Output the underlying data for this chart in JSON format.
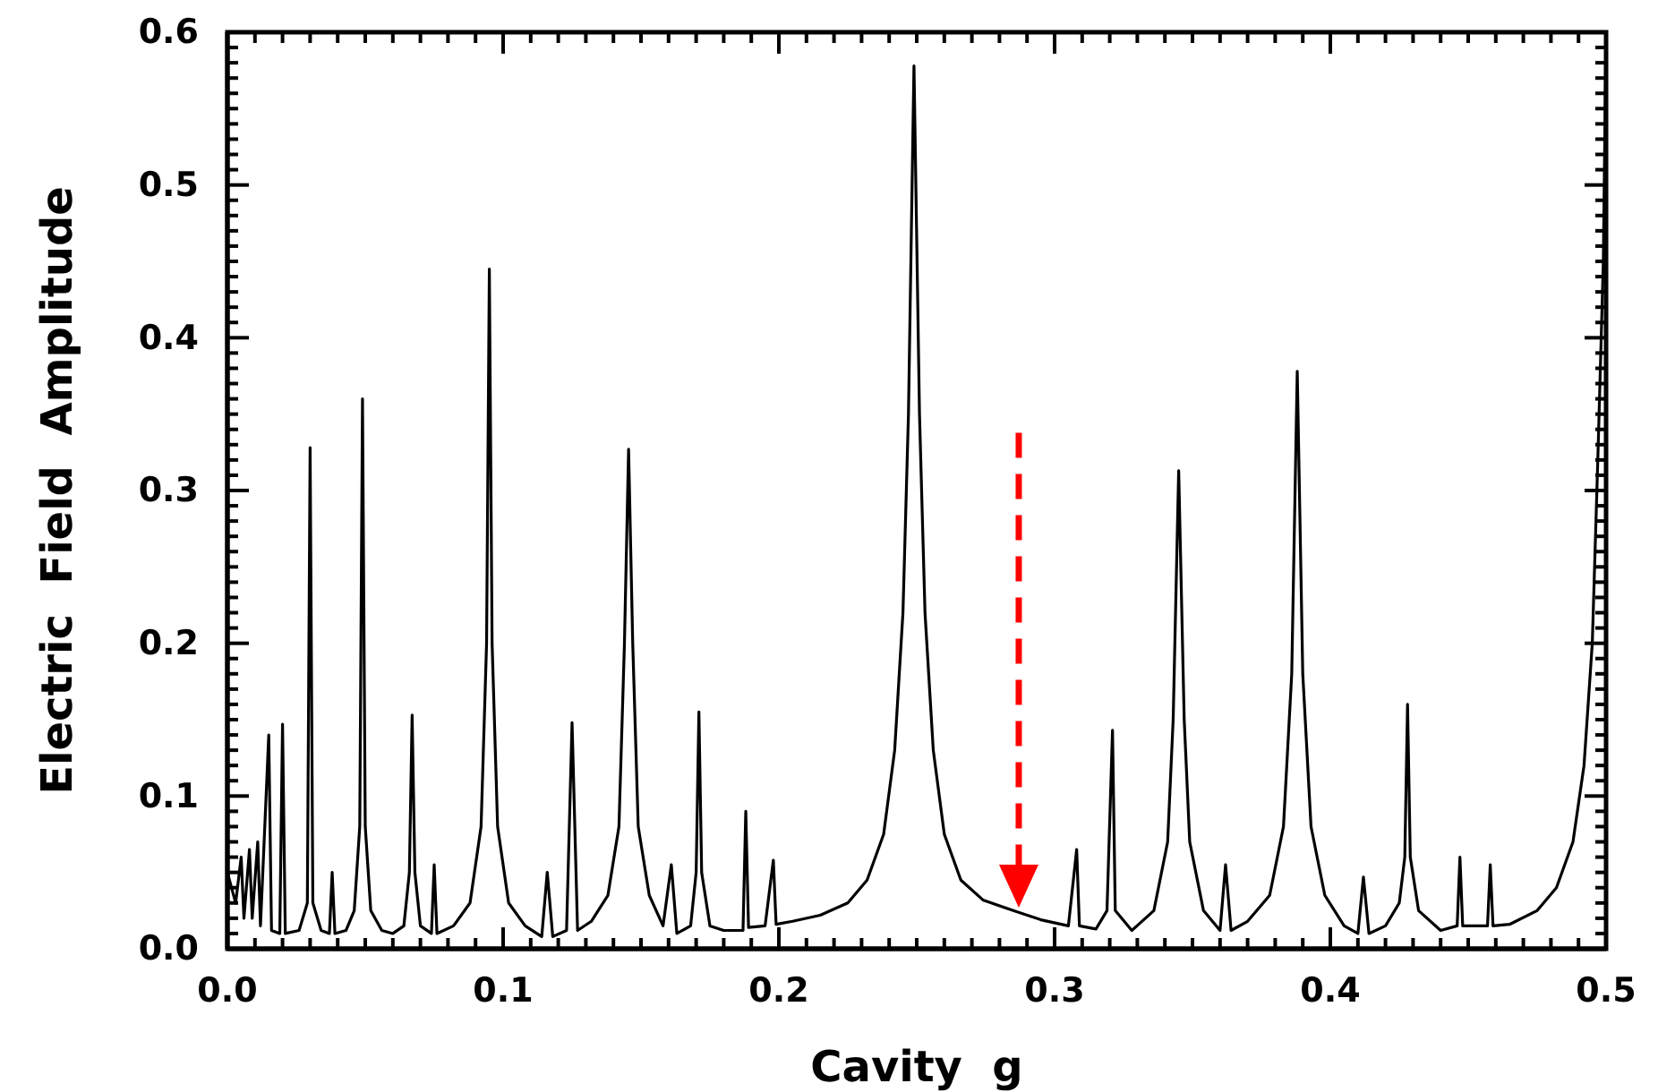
{
  "chart_data": {
    "type": "line",
    "xlabel": "Cavity  g",
    "ylabel": "Electric  Field  Amplitude",
    "xlim": [
      0,
      0.5
    ],
    "ylim": [
      0,
      0.6
    ],
    "xticks": [
      {
        "value": 0,
        "label": "0.0"
      },
      {
        "value": 0.1,
        "label": "0.1"
      },
      {
        "value": 0.2,
        "label": "0.2"
      },
      {
        "value": 0.3,
        "label": "0.3"
      },
      {
        "value": 0.4,
        "label": "0.4"
      },
      {
        "value": 0.5,
        "label": "0.5"
      }
    ],
    "yticks": [
      {
        "value": 0,
        "label": "0.0"
      },
      {
        "value": 0.1,
        "label": "0.1"
      },
      {
        "value": 0.2,
        "label": "0.2"
      },
      {
        "value": 0.3,
        "label": "0.3"
      },
      {
        "value": 0.4,
        "label": "0.4"
      },
      {
        "value": 0.5,
        "label": "0.5"
      },
      {
        "value": 0.6,
        "label": "0.6"
      }
    ],
    "marker": "none",
    "line_style": "solid",
    "series": [
      {
        "color": "#000000",
        "x": [
          0,
          0.003,
          0.005,
          0.006,
          0.008,
          0.009,
          0.011,
          0.012,
          0.015,
          0.016,
          0.019,
          0.02,
          0.021,
          0.026,
          0.029,
          0.03,
          0.031,
          0.034,
          0.037,
          0.038,
          0.039,
          0.043,
          0.046,
          0.048,
          0.049,
          0.05,
          0.052,
          0.056,
          0.06,
          0.064,
          0.066,
          0.067,
          0.068,
          0.07,
          0.074,
          0.075,
          0.076,
          0.082,
          0.088,
          0.092,
          0.094,
          0.095,
          0.096,
          0.098,
          0.102,
          0.108,
          0.114,
          0.116,
          0.118,
          0.123,
          0.125,
          0.127,
          0.132,
          0.138,
          0.142,
          0.144,
          0.1455,
          0.147,
          0.149,
          0.153,
          0.158,
          0.161,
          0.163,
          0.168,
          0.17,
          0.171,
          0.172,
          0.175,
          0.18,
          0.187,
          0.188,
          0.189,
          0.195,
          0.198,
          0.199,
          0.205,
          0.215,
          0.225,
          0.232,
          0.238,
          0.242,
          0.245,
          0.247,
          0.249,
          0.251,
          0.253,
          0.256,
          0.26,
          0.266,
          0.274,
          0.285,
          0.295,
          0.305,
          0.308,
          0.309,
          0.315,
          0.319,
          0.321,
          0.322,
          0.328,
          0.336,
          0.341,
          0.343,
          0.345,
          0.347,
          0.349,
          0.354,
          0.36,
          0.362,
          0.364,
          0.37,
          0.378,
          0.383,
          0.386,
          0.388,
          0.39,
          0.393,
          0.398,
          0.405,
          0.41,
          0.412,
          0.414,
          0.42,
          0.425,
          0.427,
          0.428,
          0.429,
          0.432,
          0.44,
          0.446,
          0.447,
          0.448,
          0.457,
          0.458,
          0.459,
          0.465,
          0.475,
          0.482,
          0.488,
          0.492,
          0.495,
          0.497,
          0.499,
          0.5
        ],
        "values": [
          0.05,
          0.03,
          0.06,
          0.02,
          0.065,
          0.02,
          0.07,
          0.015,
          0.14,
          0.012,
          0.01,
          0.147,
          0.01,
          0.012,
          0.03,
          0.328,
          0.03,
          0.012,
          0.01,
          0.05,
          0.01,
          0.012,
          0.025,
          0.08,
          0.36,
          0.08,
          0.025,
          0.012,
          0.01,
          0.015,
          0.05,
          0.153,
          0.05,
          0.015,
          0.01,
          0.055,
          0.01,
          0.015,
          0.03,
          0.08,
          0.2,
          0.445,
          0.2,
          0.08,
          0.03,
          0.015,
          0.008,
          0.05,
          0.008,
          0.012,
          0.148,
          0.012,
          0.018,
          0.035,
          0.08,
          0.2,
          0.327,
          0.2,
          0.08,
          0.035,
          0.015,
          0.055,
          0.01,
          0.015,
          0.05,
          0.155,
          0.05,
          0.015,
          0.012,
          0.012,
          0.09,
          0.014,
          0.015,
          0.058,
          0.016,
          0.018,
          0.022,
          0.03,
          0.045,
          0.075,
          0.13,
          0.22,
          0.35,
          0.578,
          0.35,
          0.22,
          0.13,
          0.075,
          0.045,
          0.032,
          0.025,
          0.019,
          0.015,
          0.065,
          0.015,
          0.013,
          0.025,
          0.143,
          0.025,
          0.012,
          0.025,
          0.07,
          0.15,
          0.313,
          0.15,
          0.07,
          0.025,
          0.012,
          0.055,
          0.012,
          0.018,
          0.035,
          0.08,
          0.18,
          0.378,
          0.18,
          0.08,
          0.035,
          0.015,
          0.01,
          0.047,
          0.01,
          0.015,
          0.03,
          0.06,
          0.16,
          0.06,
          0.025,
          0.012,
          0.015,
          0.06,
          0.015,
          0.015,
          0.055,
          0.015,
          0.016,
          0.025,
          0.04,
          0.07,
          0.12,
          0.2,
          0.32,
          0.45,
          0.6
        ]
      }
    ]
  }
}
